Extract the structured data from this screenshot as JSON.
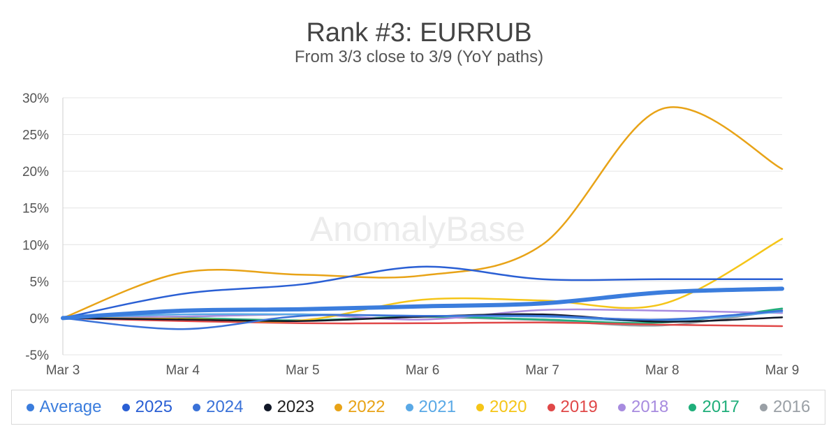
{
  "chart_data": {
    "type": "line",
    "title": "Rank #3: EURRUB",
    "subtitle": "From 3/3 close to 3/9 (YoY paths)",
    "watermark": "AnomalyBase",
    "x": [
      "Mar 3",
      "Mar 4",
      "Mar 5",
      "Mar 6",
      "Mar 7",
      "Mar 8",
      "Mar 9"
    ],
    "y_ticks": [
      "30%",
      "25%",
      "20%",
      "15%",
      "10%",
      "5%",
      "0%",
      "-5%"
    ],
    "ylim": [
      -5,
      30
    ],
    "grid": true,
    "legend": "bottom",
    "series": [
      {
        "name": "Average",
        "color": "#3b7ddd",
        "values": [
          0,
          1.0,
          1.2,
          1.6,
          2.0,
          3.5,
          4.0
        ]
      },
      {
        "name": "2025",
        "color": "#2a5fd4",
        "values": [
          0,
          3.3,
          4.6,
          7.0,
          5.3,
          5.3,
          5.3
        ]
      },
      {
        "name": "2024",
        "color": "#3a72d8",
        "values": [
          0,
          -1.5,
          0.3,
          0.3,
          0.3,
          -0.2,
          1.0
        ]
      },
      {
        "name": "2023",
        "color": "#111827",
        "values": [
          0,
          -0.2,
          -0.4,
          0.2,
          0.5,
          -0.5,
          0.1
        ]
      },
      {
        "name": "2022",
        "color": "#e8a317",
        "values": [
          0,
          6.2,
          5.9,
          5.8,
          10.0,
          28.5,
          20.3
        ]
      },
      {
        "name": "2021",
        "color": "#5aa9e6",
        "values": [
          0,
          0.5,
          0.5,
          0.3,
          0.2,
          -0.4,
          0.9
        ]
      },
      {
        "name": "2020",
        "color": "#f5c518",
        "values": [
          0,
          -0.1,
          -0.3,
          2.5,
          2.4,
          1.9,
          10.8
        ]
      },
      {
        "name": "2019",
        "color": "#e04848",
        "values": [
          0,
          -0.4,
          -0.7,
          -0.7,
          -0.6,
          -0.9,
          -1.1
        ]
      },
      {
        "name": "2018",
        "color": "#a78bdf",
        "values": [
          0,
          0.2,
          0.5,
          -0.2,
          1.1,
          1.0,
          0.7
        ]
      },
      {
        "name": "2017",
        "color": "#1fae7a",
        "values": [
          0,
          0.0,
          -0.3,
          0.2,
          -0.2,
          -0.6,
          1.3
        ]
      },
      {
        "name": "2016",
        "color": "#9aa0a6",
        "values": [
          0,
          0.2,
          0.5,
          0.2,
          -0.3,
          -1.0,
          1.1
        ]
      }
    ]
  }
}
